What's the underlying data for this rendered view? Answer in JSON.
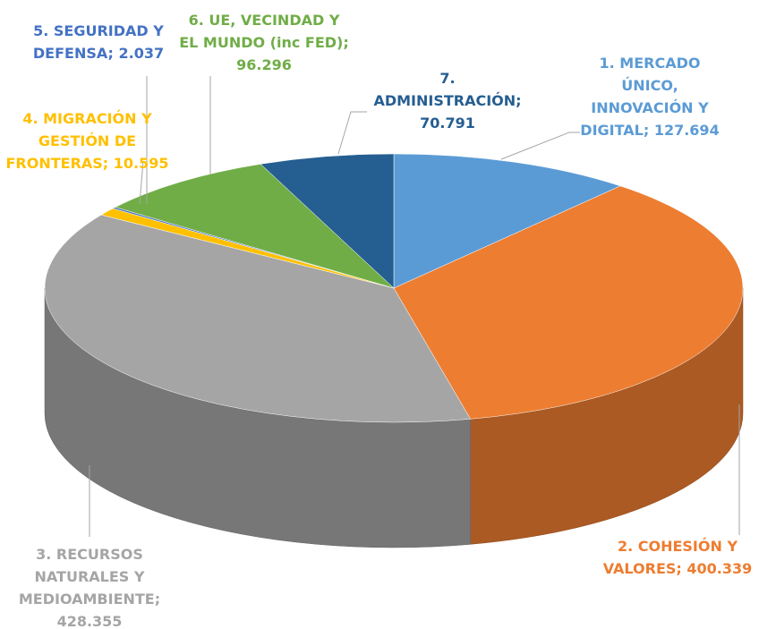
{
  "chart_data": {
    "type": "pie",
    "values": [
      127694,
      400339,
      428355,
      10595,
      2037,
      96296,
      70791
    ],
    "value_labels": [
      "1. MERCADO ÚNICO, INNOVACIÓN Y DIGITAL; 127.694",
      "2. COHESIÓN Y VALORES; 400.339",
      "3. RECURSOS NATURALES Y MEDIOAMBIENTE; 428.355",
      "4. MIGRACIÓN Y GESTIÓN DE FRONTERAS; 10.595",
      "5. SEGURIDAD Y DEFENSA; 2.037",
      "6. UE, VECINDAD Y EL MUNDO (inc FED); 96.296",
      "7. ADMINISTRACIÓN; 70.791"
    ],
    "colors": [
      "#5b9bd5",
      "#ed7d31",
      "#a5a5a5",
      "#ffc000",
      "#4472c4",
      "#70ad47",
      "#255e91"
    ]
  }
}
